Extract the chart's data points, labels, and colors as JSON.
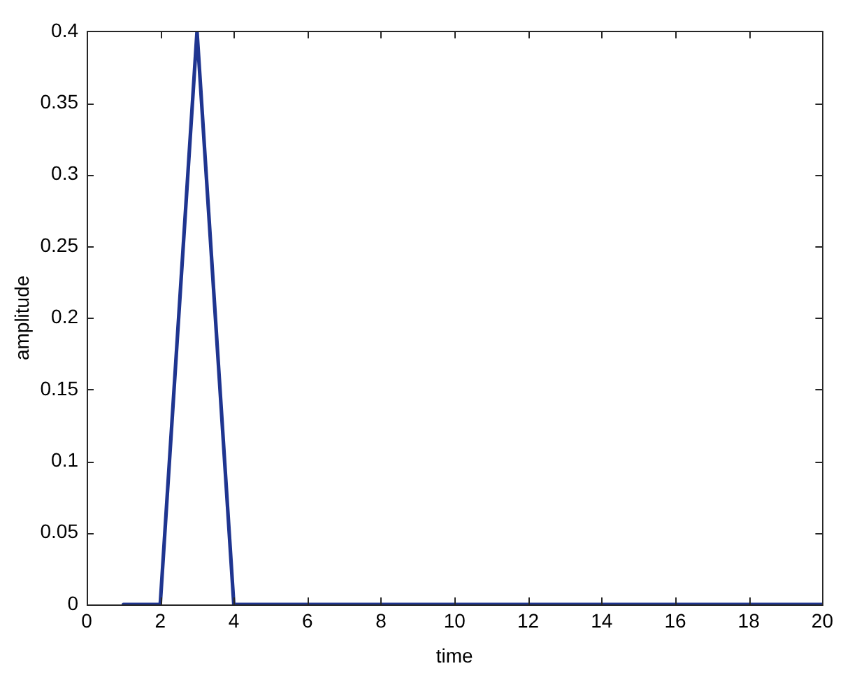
{
  "chart_data": {
    "type": "line",
    "xlabel": "time",
    "ylabel": "amplitude",
    "x": [
      1,
      2,
      3,
      4,
      5,
      6,
      7,
      8,
      9,
      10,
      11,
      12,
      13,
      14,
      15,
      16,
      17,
      18,
      19,
      20
    ],
    "series": [
      {
        "color": "#1f3590",
        "values": [
          0,
          0,
          0.4,
          0,
          0,
          0,
          0,
          0,
          0,
          0,
          0,
          0,
          0,
          0,
          0,
          0,
          0,
          0,
          0,
          0
        ]
      }
    ],
    "xlim": [
      0,
      20
    ],
    "xticks": [
      0,
      2,
      4,
      6,
      8,
      10,
      12,
      14,
      16,
      18,
      20
    ],
    "ylim": [
      0,
      0.4
    ],
    "yticks": [
      0,
      0.05,
      0.1,
      0.15,
      0.2,
      0.25,
      0.3,
      0.35,
      0.4
    ],
    "grid": false,
    "legend": false,
    "marker": "none",
    "line_style": "solid"
  }
}
